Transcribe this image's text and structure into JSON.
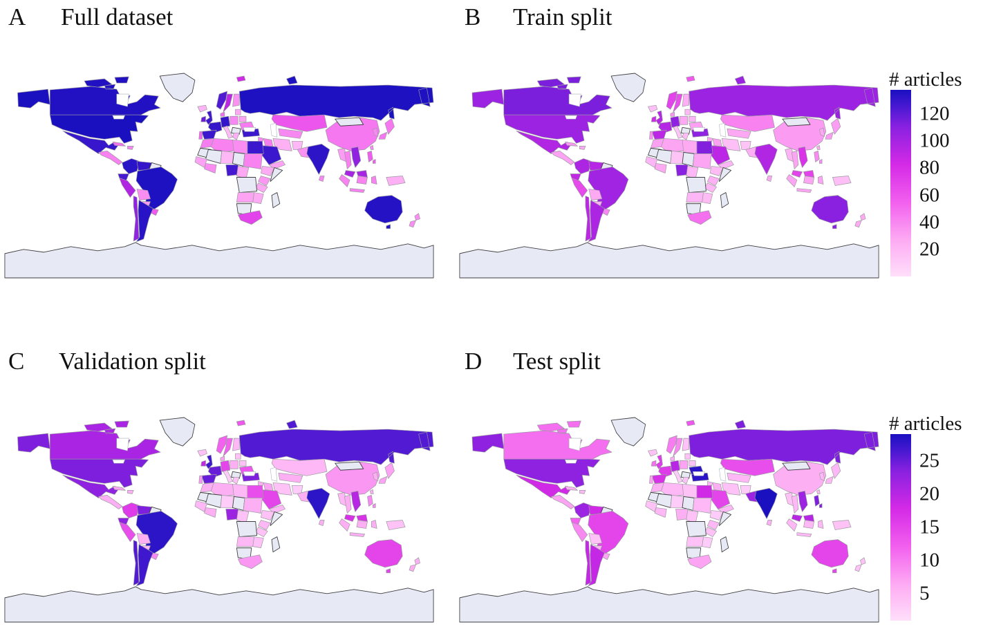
{
  "chart_data": {
    "type": "choropleth",
    "projection": "equirectangular-world",
    "legend_title": "# articles",
    "panels": [
      {
        "letter": "A",
        "title": "Full dataset",
        "colorbar": 0,
        "values": {
          "usa": 138,
          "canada": 136,
          "mexico": 130,
          "centralamerica": 42,
          "cuba": 48,
          "hispaniola": 40,
          "iceland": 22,
          "colombia": 134,
          "venezuela": 131,
          "ecuador": 126,
          "peru": 96,
          "brazil": 137,
          "bolivia": 38,
          "paraguay": 34,
          "uruguay": 58,
          "chile": 108,
          "argentina": 134,
          "uk": 128,
          "ireland": 118,
          "france": 131,
          "spain": 129,
          "portugal": 54,
          "germany": 131,
          "poland": 40,
          "norway": 124,
          "sweden": 92,
          "finland": 36,
          "denmark": 50,
          "italy": 18,
          "ukraine": 44,
          "belarus": 30,
          "baltics": 28,
          "greece": 25,
          "russia": 137,
          "svalbard": 84,
          "turkey": 129,
          "syria": 40,
          "iraq": 44,
          "iran": 24,
          "saudi": 129,
          "yemen": 30,
          "kazakhstan": 60,
          "uzbek": 40,
          "afghanistan": 20,
          "pakistan": 36,
          "india": 133,
          "srilanka": 40,
          "china": 46,
          "morocco": 44,
          "algeria": 42,
          "libya": 38,
          "egypt": 129,
          "niger": 20,
          "sudan": 42,
          "westafrica": 30,
          "ghana": 38,
          "nigeria": 127,
          "cameroon": 28,
          "ethiopia": 26,
          "kenya": 34,
          "tanzania": 28,
          "angola": 30,
          "zambia": 26,
          "southafrica": 70,
          "myanmar": 32,
          "thailand": 42,
          "vietnam": 108,
          "malaysia": 100,
          "indonesia": 42,
          "philippines": 56,
          "japan": 46,
          "southkorea": 40,
          "taiwan": 40,
          "newguinea": 24,
          "australia": 135,
          "newzealand": 38
        }
      },
      {
        "letter": "B",
        "title": "Train split",
        "colorbar": 0,
        "values": {
          "usa": 104,
          "canada": 114,
          "mexico": 96,
          "centralamerica": 30,
          "cuba": 34,
          "hispaniola": 28,
          "iceland": 16,
          "colombia": 98,
          "venezuela": 94,
          "ecuador": 90,
          "peru": 66,
          "brazil": 102,
          "bolivia": 27,
          "paraguay": 24,
          "uruguay": 40,
          "chile": 92,
          "argentina": 98,
          "uk": 94,
          "ireland": 84,
          "france": 95,
          "spain": 92,
          "portugal": 38,
          "germany": 108,
          "poland": 28,
          "norway": 70,
          "sweden": 64,
          "finland": 25,
          "denmark": 35,
          "italy": 13,
          "ukraine": 31,
          "belarus": 21,
          "baltics": 20,
          "greece": 18,
          "russia": 104,
          "svalbard": 58,
          "turkey": 108,
          "syria": 28,
          "iraq": 31,
          "iran": 17,
          "saudi": 92,
          "yemen": 21,
          "kazakhstan": 42,
          "uzbek": 28,
          "afghanistan": 14,
          "pakistan": 25,
          "india": 96,
          "srilanka": 28,
          "china": 33,
          "morocco": 31,
          "algeria": 29,
          "libya": 27,
          "egypt": 112,
          "niger": 14,
          "sudan": 29,
          "westafrica": 21,
          "ghana": 27,
          "nigeria": 110,
          "cameroon": 20,
          "ethiopia": 18,
          "kenya": 24,
          "tanzania": 20,
          "angola": 21,
          "zambia": 18,
          "southafrica": 49,
          "myanmar": 22,
          "thailand": 29,
          "vietnam": 78,
          "malaysia": 70,
          "indonesia": 29,
          "philippines": 39,
          "japan": 32,
          "southkorea": 28,
          "taiwan": 28,
          "newguinea": 17,
          "australia": 110,
          "newzealand": 27
        }
      },
      {
        "letter": "C",
        "title": "Validation split",
        "colorbar": 1,
        "values": {
          "usa": 24,
          "canada": 21,
          "mexico": 23,
          "centralamerica": 6,
          "cuba": 7,
          "hispaniola": 6,
          "iceland": 4,
          "colombia": 16,
          "venezuela": 24,
          "ecuador": 23,
          "peru": 14,
          "brazil": 28,
          "bolivia": 6,
          "paraguay": 5,
          "uruguay": 9,
          "chile": 26,
          "argentina": 27,
          "uk": 27,
          "ireland": 19,
          "france": 25,
          "spain": 25,
          "portugal": 8,
          "germany": 15,
          "poland": 6,
          "norway": 12,
          "sweden": 12,
          "finland": 5,
          "denmark": 7,
          "italy": 3,
          "ukraine": 13,
          "belarus": 4,
          "baltics": 4,
          "greece": 4,
          "russia": 26,
          "svalbard": 13,
          "turkey": 24,
          "syria": 6,
          "iraq": 7,
          "iran": 4,
          "saudi": 15,
          "yemen": 5,
          "kazakhstan": 5,
          "uzbek": 6,
          "afghanistan": 3,
          "pakistan": 6,
          "india": 28,
          "srilanka": 6,
          "china": 8,
          "morocco": 6,
          "algeria": 6,
          "libya": 5,
          "egypt": 14,
          "niger": 3,
          "sudan": 6,
          "westafrica": 5,
          "ghana": 6,
          "nigeria": 22,
          "cameroon": 4,
          "ethiopia": 4,
          "kenya": 5,
          "tanzania": 4,
          "angola": 5,
          "zambia": 4,
          "southafrica": 8,
          "myanmar": 5,
          "thailand": 6,
          "vietnam": 20,
          "malaysia": 17,
          "indonesia": 6,
          "philippines": 9,
          "japan": 7,
          "southkorea": 6,
          "taiwan": 6,
          "newguinea": 4,
          "australia": 15,
          "newzealand": 6
        }
      },
      {
        "letter": "D",
        "title": "Test split",
        "colorbar": 1,
        "values": {
          "usa": 23,
          "canada": 11,
          "mexico": 18,
          "centralamerica": 7,
          "cuba": 6,
          "hispaniola": 5,
          "iceland": 4,
          "colombia": 22,
          "venezuela": 18,
          "ecuador": 12,
          "peru": 9,
          "brazil": 15,
          "bolivia": 4,
          "paraguay": 5,
          "uruguay": 7,
          "chile": 19,
          "argentina": 19,
          "uk": 16,
          "ireland": 11,
          "france": 16,
          "spain": 17,
          "portugal": 7,
          "germany": 20,
          "poland": 7,
          "norway": 10,
          "sweden": 9,
          "finland": 4,
          "denmark": 6,
          "italy": 3,
          "ukraine": 28,
          "belarus": 4,
          "baltics": 4,
          "greece": 4,
          "russia": 24,
          "svalbard": 13,
          "turkey": 28,
          "syria": 5,
          "iraq": 6,
          "iran": 4,
          "saudi": 15,
          "yemen": 5,
          "kazakhstan": 14,
          "uzbek": 5,
          "afghanistan": 3,
          "pakistan": 22,
          "india": 29,
          "srilanka": 6,
          "china": 6,
          "morocco": 6,
          "algeria": 5,
          "libya": 4,
          "egypt": 18,
          "niger": 3,
          "sudan": 5,
          "westafrica": 4,
          "ghana": 5,
          "nigeria": 6,
          "cameroon": 4,
          "ethiopia": 3,
          "kenya": 5,
          "tanzania": 4,
          "angola": 4,
          "zambia": 3,
          "southafrica": 7,
          "myanmar": 4,
          "thailand": 5,
          "vietnam": 22,
          "malaysia": 20,
          "indonesia": 5,
          "philippines": 24,
          "japan": 5,
          "southkorea": 5,
          "taiwan": 5,
          "newguinea": 4,
          "australia": 15,
          "newzealand": 4
        }
      }
    ],
    "colorbars": [
      {
        "title": "# articles",
        "ticks": [
          120,
          100,
          80,
          60,
          40,
          20
        ],
        "vmin": 0,
        "vmax": 138
      },
      {
        "title": "# articles",
        "ticks": [
          25,
          20,
          15,
          10,
          5
        ],
        "vmin": 1,
        "vmax": 29
      }
    ],
    "colormap_stops": [
      [
        0.0,
        "#ffdffa"
      ],
      [
        0.2,
        "#fda9f3"
      ],
      [
        0.4,
        "#f25fee"
      ],
      [
        0.6,
        "#d42ae6"
      ],
      [
        0.8,
        "#8a21e0"
      ],
      [
        0.92,
        "#4318d0"
      ],
      [
        1.0,
        "#1a10c0"
      ]
    ],
    "no_data_countries": [
      "greenland",
      "guyana",
      "mongolia",
      "mauritania",
      "mali",
      "chad",
      "drc",
      "namibia",
      "somalia",
      "madagascar",
      "romania",
      "antarctica"
    ],
    "colors": {
      "ocean": "#ffffff",
      "no_data": "#e7eaf4",
      "border_data": "#9a9aa0",
      "border_no_data": "#3e3e42",
      "text": "#111111"
    }
  }
}
